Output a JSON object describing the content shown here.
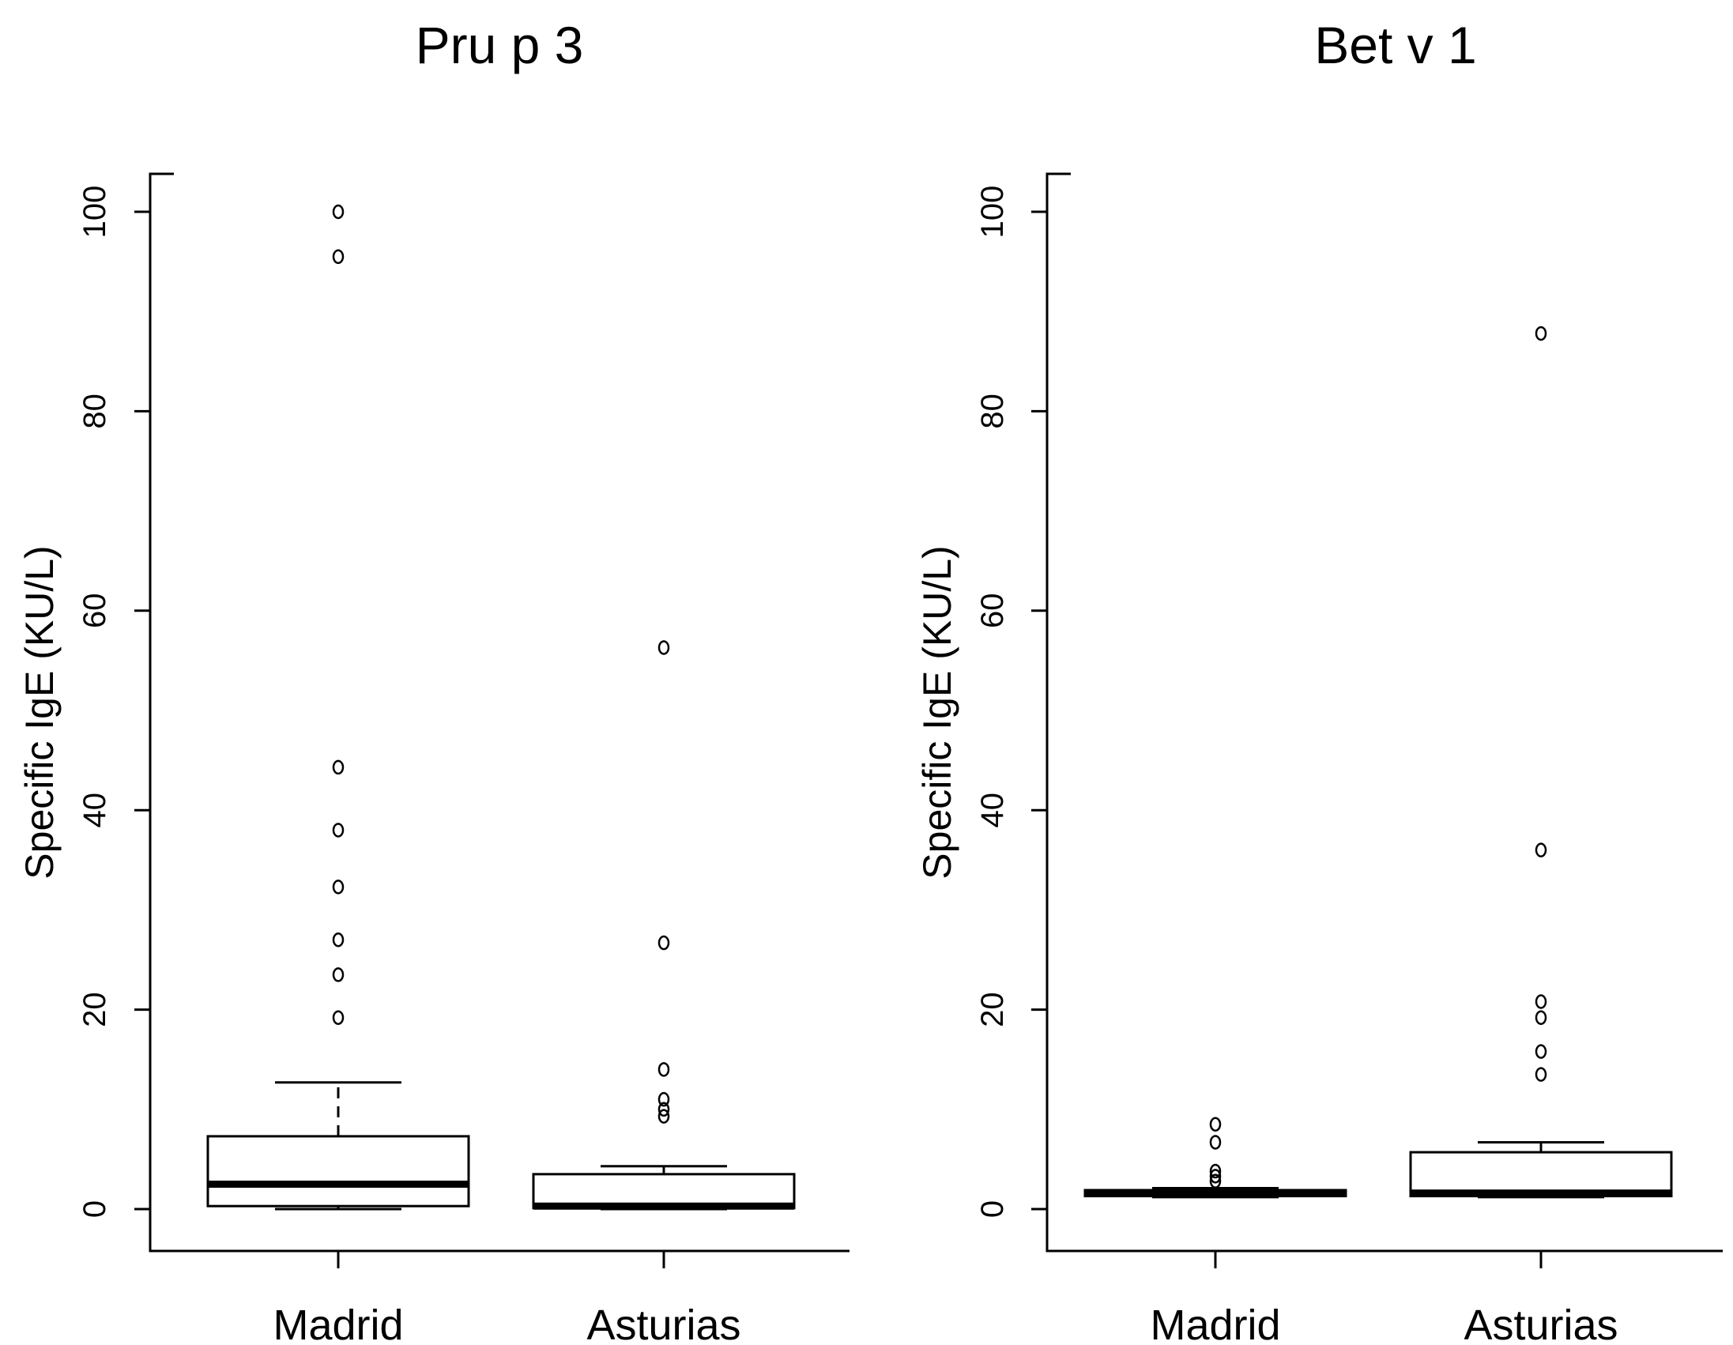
{
  "chart_data": [
    {
      "type": "box",
      "title": "Pru p 3",
      "ylabel": "Specific IgE (KU/L)",
      "xlabel": "",
      "ylim": [
        0,
        100
      ],
      "yticks": [
        0,
        20,
        40,
        60,
        80,
        100
      ],
      "ytick_labels": [
        "0",
        "20",
        "40",
        "60",
        "80",
        "100"
      ],
      "categories": [
        "Madrid",
        "Asturias"
      ],
      "boxes": [
        {
          "name": "Madrid",
          "whisker_low": 0,
          "q1": 0.3,
          "median": 2.5,
          "q3": 7.3,
          "whisker_high": 12.7,
          "outliers": [
            100,
            95.5,
            44.3,
            38,
            32.3,
            27,
            23.5,
            19.2
          ]
        },
        {
          "name": "Asturias",
          "whisker_low": 0,
          "q1": 0.1,
          "median": 0.3,
          "q3": 3.5,
          "whisker_high": 4.3,
          "outliers": [
            56.3,
            26.7,
            14,
            11,
            10,
            9.3
          ]
        }
      ]
    },
    {
      "type": "box",
      "title": "Bet v 1",
      "ylabel": "Specific IgE (KU/L)",
      "xlabel": "",
      "ylim": [
        0,
        100
      ],
      "yticks": [
        0,
        20,
        40,
        60,
        80,
        100
      ],
      "ytick_labels": [
        "0",
        "20",
        "40",
        "60",
        "80",
        "100"
      ],
      "categories": [
        "Madrid",
        "Asturias"
      ],
      "boxes": [
        {
          "name": "Madrid",
          "whisker_low": 1.2,
          "q1": 1.3,
          "median": 1.6,
          "q3": 1.9,
          "whisker_high": 2.1,
          "outliers": [
            8.5,
            6.7,
            3.8,
            3.3,
            2.8
          ]
        },
        {
          "name": "Asturias",
          "whisker_low": 1.2,
          "q1": 1.3,
          "median": 1.6,
          "q3": 5.7,
          "whisker_high": 6.7,
          "outliers": [
            87.8,
            36,
            20.8,
            19.2,
            15.8,
            13.5
          ]
        }
      ]
    }
  ]
}
